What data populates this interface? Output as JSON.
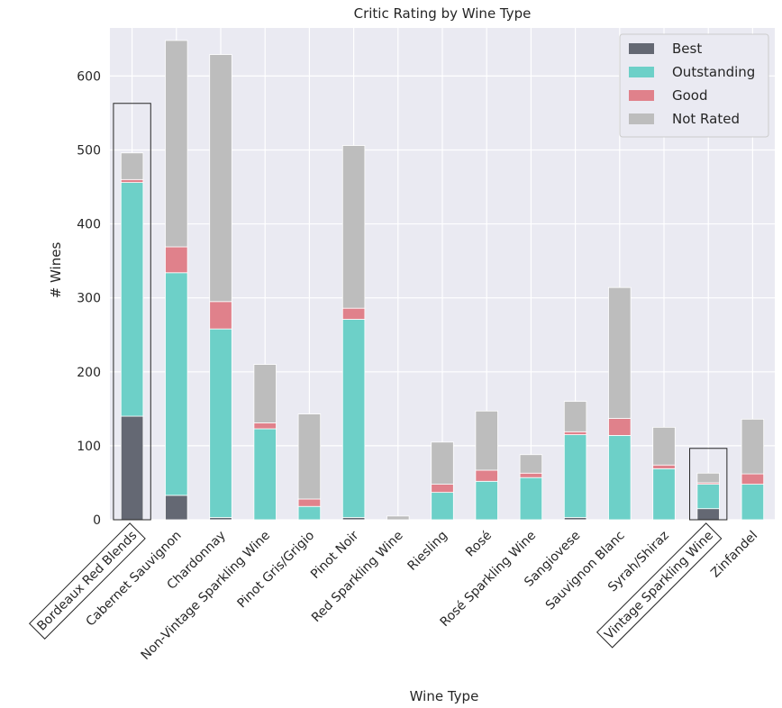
{
  "chart_data": {
    "type": "bar",
    "stacked": true,
    "title": "Critic Rating by Wine Type",
    "xlabel": "Wine Type",
    "ylabel": "# Wines",
    "ylim": [
      0,
      665
    ],
    "yticks": [
      0,
      100,
      200,
      300,
      400,
      500,
      600
    ],
    "grid": true,
    "legend_position": "top-right",
    "categories": [
      "Bordeaux Red Blends",
      "Cabernet Sauvignon",
      "Chardonnay",
      "Non-Vintage Sparkling Wine",
      "Pinot Gris/Grigio",
      "Pinot Noir",
      "Red Sparkling Wine",
      "Riesling",
      "Rosé",
      "Rosé Sparkling Wine",
      "Sangiovese",
      "Sauvignon Blanc",
      "Syrah/Shiraz",
      "Vintage Sparkling Wine",
      "Zinfandel"
    ],
    "series": [
      {
        "name": "Best",
        "color": "#646873",
        "values": [
          140,
          33,
          3,
          0,
          0,
          3,
          0,
          0,
          0,
          0,
          3,
          0,
          0,
          15,
          0
        ]
      },
      {
        "name": "Outstanding",
        "color": "#6dd0c8",
        "values": [
          316,
          301,
          255,
          123,
          18,
          268,
          0,
          37,
          52,
          57,
          112,
          114,
          69,
          33,
          48
        ]
      },
      {
        "name": "Good",
        "color": "#e0818b",
        "values": [
          4,
          35,
          37,
          8,
          10,
          15,
          0,
          11,
          15,
          6,
          4,
          23,
          5,
          2,
          14
        ]
      },
      {
        "name": "Not Rated",
        "color": "#bdbdbd",
        "values": [
          36,
          279,
          334,
          79,
          115,
          220,
          5,
          57,
          80,
          25,
          41,
          177,
          51,
          13,
          74
        ]
      }
    ],
    "highlighted_categories": [
      "Bordeaux Red Blends",
      "Vintage Sparkling Wine"
    ]
  }
}
